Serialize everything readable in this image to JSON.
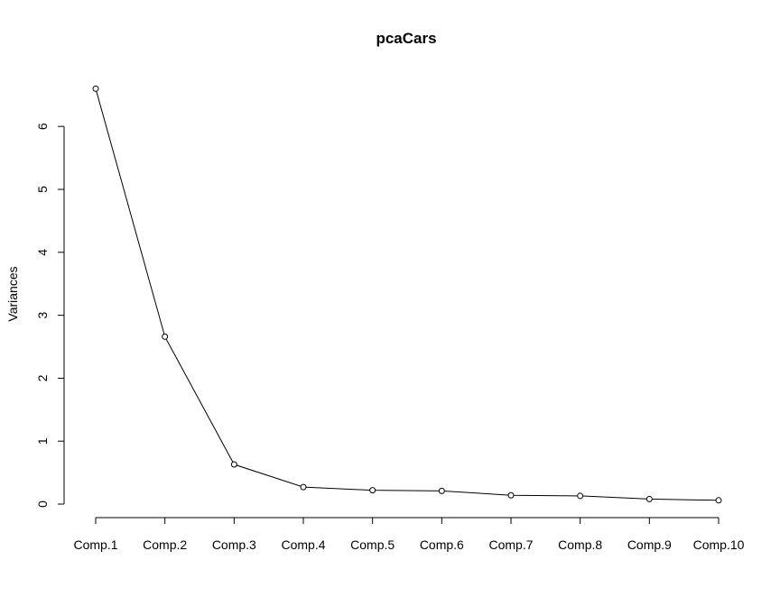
{
  "chart_data": {
    "type": "line",
    "title": "pcaCars",
    "xlabel": "",
    "ylabel": "Variances",
    "categories": [
      "Comp.1",
      "Comp.2",
      "Comp.3",
      "Comp.4",
      "Comp.5",
      "Comp.6",
      "Comp.7",
      "Comp.8",
      "Comp.9",
      "Comp.10"
    ],
    "series": [
      {
        "values": [
          6.6,
          2.66,
          0.63,
          0.27,
          0.22,
          0.21,
          0.14,
          0.13,
          0.08,
          0.06
        ]
      }
    ],
    "ylim": [
      0,
      6
    ],
    "yticks": [
      0,
      1,
      2,
      3,
      4,
      5,
      6
    ],
    "grid": false,
    "legend": "none",
    "colors": {
      "line": "#000000",
      "point_fill": "#ffffff",
      "point_stroke": "#000000"
    }
  }
}
